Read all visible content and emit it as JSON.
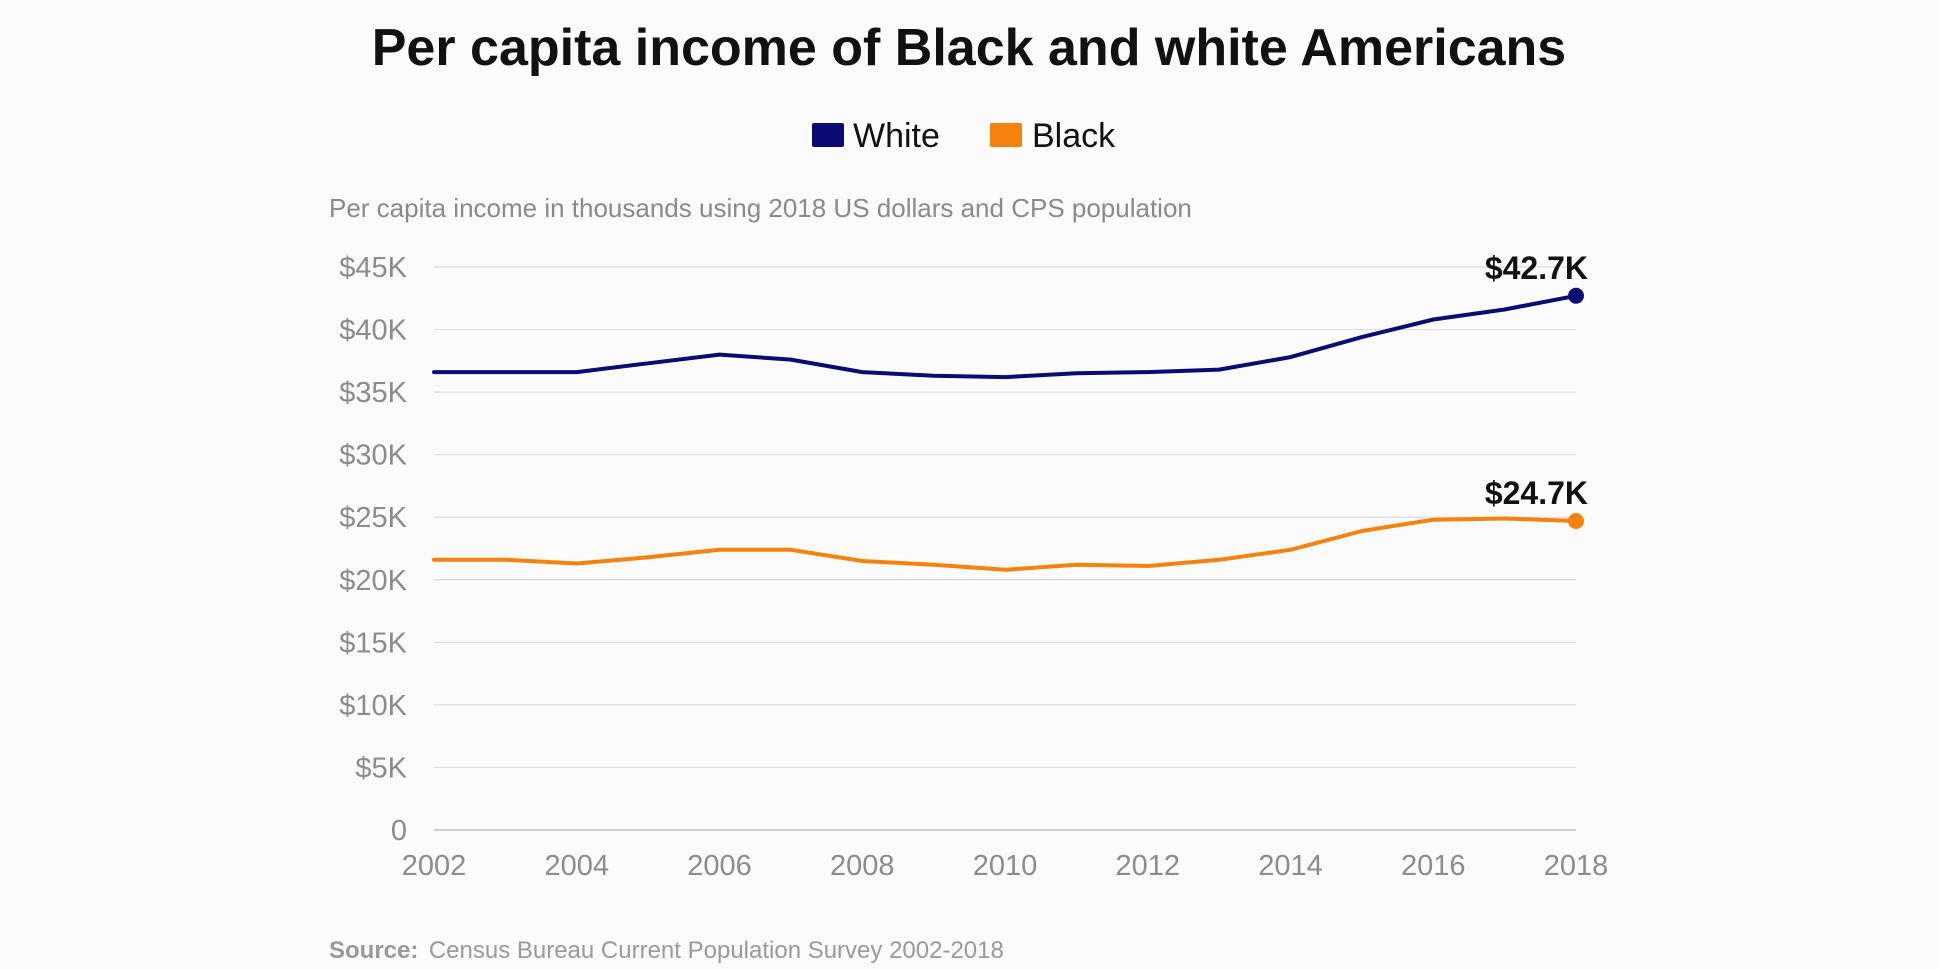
{
  "chart_data": {
    "type": "line",
    "title": "Per capita income of Black and white Americans",
    "subtitle": "Per capita income in thousands using 2018 US dollars and CPS population",
    "x": [
      2002,
      2003,
      2004,
      2005,
      2006,
      2007,
      2008,
      2009,
      2010,
      2011,
      2012,
      2013,
      2014,
      2015,
      2016,
      2017,
      2018
    ],
    "x_tick_labels": [
      "2002",
      "2004",
      "2006",
      "2008",
      "2010",
      "2012",
      "2014",
      "2016",
      "2018"
    ],
    "y_tick_labels": [
      "0",
      "$5K",
      "$10K",
      "$15K",
      "$20K",
      "$25K",
      "$30K",
      "$35K",
      "$40K",
      "$45K"
    ],
    "ylim": [
      0,
      45
    ],
    "y_unit": "thousands of 2018 US dollars",
    "grid": true,
    "legend_placement": "top-center",
    "series": [
      {
        "name": "White",
        "color": "#0b0b74",
        "values": [
          36.6,
          36.6,
          36.6,
          37.3,
          38.0,
          37.6,
          36.6,
          36.3,
          36.2,
          36.5,
          36.6,
          36.8,
          37.8,
          39.4,
          40.8,
          41.6,
          42.7
        ],
        "end_label": "$42.7K"
      },
      {
        "name": "Black",
        "color": "#f5820d",
        "values": [
          21.6,
          21.6,
          21.3,
          21.8,
          22.4,
          22.4,
          21.5,
          21.2,
          20.8,
          21.2,
          21.1,
          21.6,
          22.4,
          23.9,
          24.8,
          24.9,
          24.7
        ],
        "end_label": "$24.7K"
      }
    ],
    "source_label": "Source:",
    "source_text": "Census Bureau Current Population Survey 2002-2018"
  }
}
